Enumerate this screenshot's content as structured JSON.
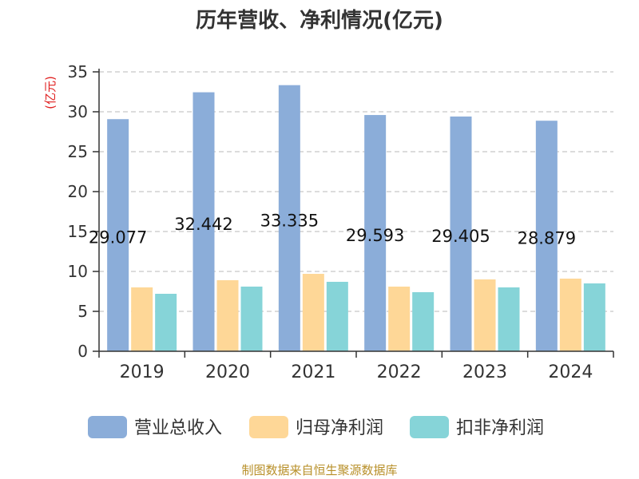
{
  "chart_data": {
    "type": "bar",
    "title": "历年营收、净利情况(亿元)",
    "ylabel": "(亿元)",
    "xlabel": "",
    "categories": [
      "2019",
      "2020",
      "2021",
      "2022",
      "2023",
      "2024"
    ],
    "ylim": [
      0,
      35
    ],
    "yticks": [
      0,
      5,
      10,
      15,
      20,
      25,
      30,
      35
    ],
    "grid": true,
    "legend_position": "bottom",
    "series": [
      {
        "name": "营业总收入",
        "color": "#8badd9",
        "values": [
          29.077,
          32.442,
          33.335,
          29.593,
          29.405,
          28.879
        ],
        "labels": [
          "29.077",
          "32.442",
          "33.335",
          "29.593",
          "29.405",
          "28.879"
        ]
      },
      {
        "name": "归母净利润",
        "color": "#fed797",
        "values": [
          8.0,
          8.9,
          9.7,
          8.1,
          9.0,
          9.1
        ]
      },
      {
        "name": "扣非净利润",
        "color": "#86d4d8",
        "values": [
          7.2,
          8.1,
          8.7,
          7.4,
          8.0,
          8.5
        ]
      }
    ],
    "source": "制图数据来自恒生聚源数据库"
  }
}
